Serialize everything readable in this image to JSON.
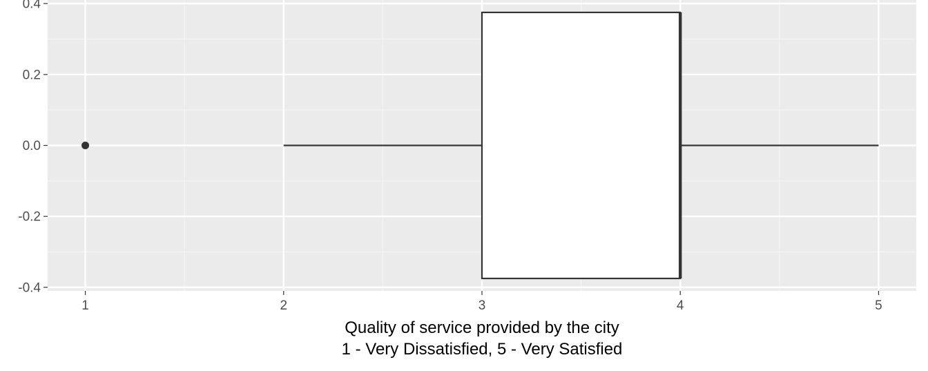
{
  "chart_data": {
    "type": "boxplot",
    "orientation": "horizontal",
    "title": "",
    "xlabel_lines": [
      "Quality of service provided by the city",
      "1 - Very Dissatisfied, 5 - Very Satisfied"
    ],
    "ylabel": "",
    "xlim": [
      0.81,
      5.19
    ],
    "ylim": [
      -0.41,
      0.41
    ],
    "x_ticks": [
      1,
      2,
      3,
      4,
      5
    ],
    "x_tick_labels": [
      "1",
      "2",
      "3",
      "4",
      "5"
    ],
    "y_ticks": [
      -0.4,
      -0.2,
      0.0,
      0.2,
      0.4
    ],
    "y_tick_labels": [
      "-0.4",
      "-0.2",
      "0.0",
      "0.2",
      "0.4"
    ],
    "grid": true,
    "box": {
      "lower_whisker": 2,
      "q1": 3,
      "median": 4,
      "q3": 4,
      "upper_whisker": 5,
      "ymin": -0.375,
      "ymax": 0.375,
      "y": 0.0,
      "outliers": [
        1
      ]
    },
    "colors": {
      "panel_background": "#ebebeb",
      "grid_major": "#ffffff",
      "grid_minor": "#f5f5f5",
      "box_fill": "#ffffff",
      "box_line": "#333333",
      "outlier": "#333333",
      "tick_label": "#4d4d4d"
    }
  }
}
